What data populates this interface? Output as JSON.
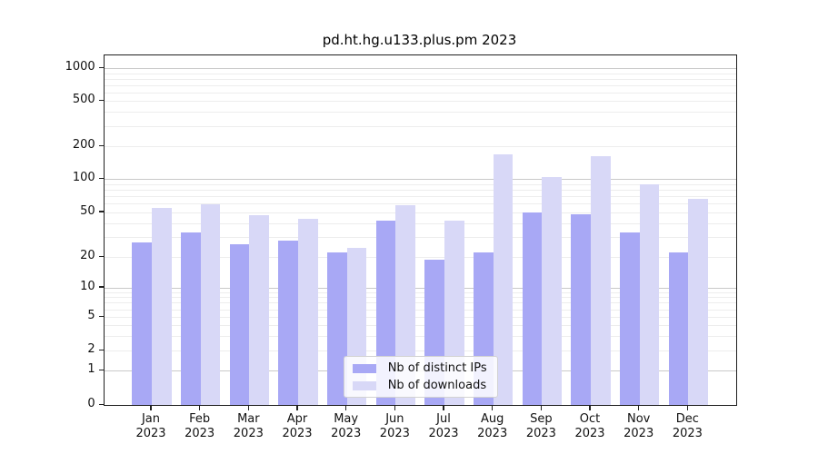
{
  "title": "pd.ht.hg.u133.plus.pm 2023",
  "colors": {
    "bar_distinct_ips": "#a8a8f5",
    "bar_downloads": "#d8d8f7",
    "grid_major": "#c9c9c9",
    "grid_minor": "#ededed",
    "axis_spine": "#1f1f1f"
  },
  "y_axis": {
    "tick_labels": [
      "1000",
      "500",
      "200",
      "100",
      "50",
      "20",
      "10",
      "5",
      "2",
      "1",
      "0"
    ],
    "tick_values": [
      1000,
      500,
      200,
      100,
      50,
      20,
      10,
      5,
      2,
      1,
      0
    ]
  },
  "x_axis": {
    "year_line": "2023",
    "month_labels": [
      "Jan",
      "Feb",
      "Mar",
      "Apr",
      "May",
      "Jun",
      "Jul",
      "Aug",
      "Sep",
      "Oct",
      "Nov",
      "Dec"
    ]
  },
  "legend": {
    "entries": [
      "Nb of distinct IPs",
      "Nb of downloads"
    ]
  },
  "chart_data": {
    "type": "bar",
    "title": "pd.ht.hg.u133.plus.pm 2023",
    "categories": [
      "Jan 2023",
      "Feb 2023",
      "Mar 2023",
      "Apr 2023",
      "May 2023",
      "Jun 2023",
      "Jul 2023",
      "Aug 2023",
      "Sep 2023",
      "Oct 2023",
      "Nov 2023",
      "Dec 2023"
    ],
    "series": [
      {
        "name": "Nb of distinct IPs",
        "color": "#a8a8f5",
        "values": [
          27,
          33,
          26,
          28,
          22,
          42,
          19,
          22,
          50,
          48,
          33,
          22
        ]
      },
      {
        "name": "Nb of downloads",
        "color": "#d8d8f7",
        "values": [
          55,
          59,
          47,
          44,
          24,
          58,
          42,
          168,
          105,
          163,
          90,
          66
        ]
      }
    ],
    "xlabel": "",
    "ylabel": "",
    "yscale": "symlog",
    "y_ticks": [
      0,
      1,
      2,
      5,
      10,
      20,
      50,
      100,
      200,
      500,
      1000
    ],
    "ylim": [
      0,
      1300
    ],
    "grid": true,
    "legend_position": "lower center"
  }
}
